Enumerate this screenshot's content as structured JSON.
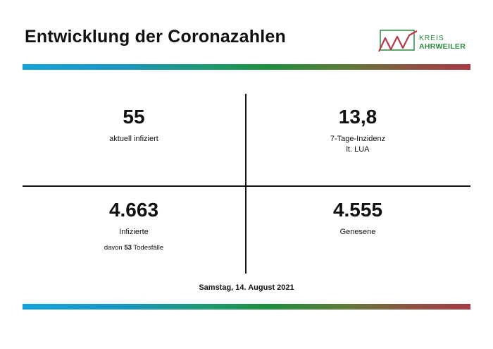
{
  "header": {
    "title": "Entwicklung der Coronazahlen",
    "logo": {
      "line1": "KREIS",
      "line2": "AHRWEILER"
    }
  },
  "stats": {
    "active": {
      "value": "55",
      "label": "aktuell infiziert"
    },
    "incidence": {
      "value": "13,8",
      "label": "7-Tage-Inzidenz",
      "label2": "lt. LUA"
    },
    "infected": {
      "value": "4.663",
      "label": "Infizierte",
      "deaths_prefix": "davon ",
      "deaths_value": "53",
      "deaths_suffix": " Todesfälle"
    },
    "recovered": {
      "value": "4.555",
      "label": "Genesene"
    }
  },
  "footer": {
    "date": "Samstag, 14. August 2021"
  },
  "colors": {
    "bar_start": "#16a3d8",
    "bar_mid": "#1f8f3e",
    "bar_end": "#a83a48",
    "logo_green": "#2a8a3e",
    "logo_red": "#b23a4a"
  }
}
